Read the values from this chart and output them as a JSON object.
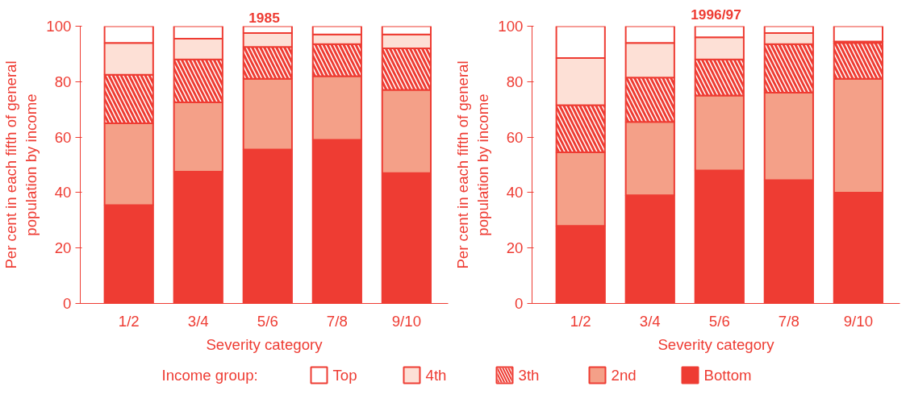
{
  "chart_data": [
    {
      "type": "bar",
      "stacked": true,
      "title": "1985",
      "xlabel": "Severity category",
      "ylabel": "Per cent in each fifth of general\npopulation by income",
      "categories": [
        "1/2",
        "3/4",
        "5/6",
        "7/8",
        "9/10"
      ],
      "ylim": [
        0,
        100
      ],
      "yticks": [
        0,
        20,
        40,
        60,
        80,
        100
      ],
      "legend": "bottom",
      "legend_title": "Income group:",
      "series": [
        {
          "name": "Bottom",
          "color": "#ee3c33",
          "values": [
            35.5,
            47.5,
            55.5,
            59,
            47
          ]
        },
        {
          "name": "2nd",
          "color": "#f4a088",
          "values": [
            29.5,
            25,
            25.5,
            23,
            30
          ]
        },
        {
          "name": "3th",
          "color": "#ffffff",
          "values": [
            17.5,
            15.5,
            11.5,
            11.5,
            15
          ]
        },
        {
          "name": "4th",
          "color": "#fde0d6",
          "values": [
            11.5,
            7.5,
            5,
            3.5,
            5
          ]
        },
        {
          "name": "Top",
          "color": "#ffffff",
          "values": [
            6,
            4.5,
            2.5,
            3,
            3
          ]
        }
      ]
    },
    {
      "type": "bar",
      "stacked": true,
      "title": "1996/97",
      "xlabel": "Severity category",
      "ylabel": "Per cent in each fifth of general\npopulation by income",
      "categories": [
        "1/2",
        "3/4",
        "5/6",
        "7/8",
        "9/10"
      ],
      "ylim": [
        0,
        100
      ],
      "yticks": [
        0,
        20,
        40,
        60,
        80,
        100
      ],
      "series": [
        {
          "color": "#ee3c33",
          "values": [
            28,
            39,
            48,
            44.5,
            40
          ]
        },
        {
          "color": "#f4a088",
          "values": [
            26.5,
            26.5,
            27,
            31.5,
            41
          ]
        },
        {
          "color": "#ffffff",
          "values": [
            17,
            16,
            13,
            17.5,
            13
          ]
        },
        {
          "color": "#fde0d6",
          "values": [
            17,
            12.5,
            8,
            4,
            0.5
          ]
        },
        {
          "color": "#ffffff",
          "values": [
            11.5,
            6,
            4,
            2.5,
            5.5
          ]
        }
      ]
    }
  ]
}
